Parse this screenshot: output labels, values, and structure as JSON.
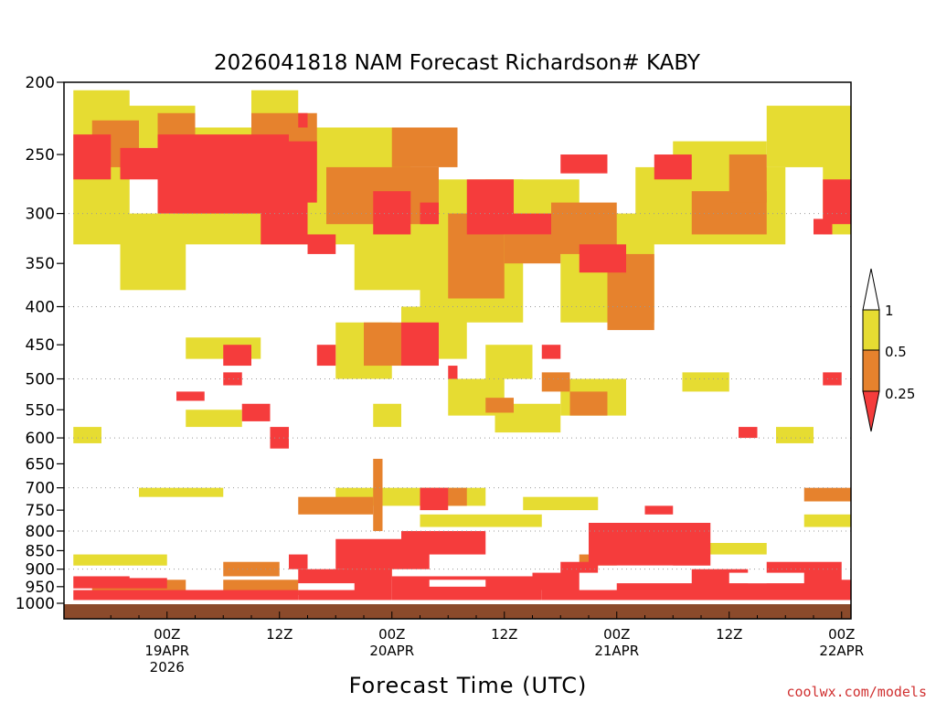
{
  "chart_data": {
    "type": "heatmap",
    "title": "2026041818 NAM Forecast Richardson# KABY",
    "xlabel": "Forecast Time (UTC)",
    "ylabel": "",
    "y_scale": "log-pressure",
    "ylim": [
      1000,
      200
    ],
    "y_ticks": [
      200,
      250,
      300,
      350,
      400,
      450,
      500,
      550,
      600,
      650,
      700,
      750,
      800,
      850,
      900,
      950,
      1000
    ],
    "y_tick_labels": [
      "200",
      "250",
      "300",
      "350",
      "400",
      "450",
      "500",
      "550",
      "600",
      "650",
      "700",
      "750",
      "800",
      "850",
      "900",
      "950",
      "1000"
    ],
    "gridlines_at": [
      300,
      400,
      500,
      600,
      700,
      800,
      900
    ],
    "xlim_hours": [
      -5,
      79
    ],
    "x_ticks": [
      {
        "hour": 6,
        "lines": [
          "00Z",
          "19APR",
          "2026"
        ]
      },
      {
        "hour": 18,
        "lines": [
          "12Z"
        ]
      },
      {
        "hour": 30,
        "lines": [
          "00Z",
          "20APR"
        ]
      },
      {
        "hour": 42,
        "lines": [
          "12Z"
        ]
      },
      {
        "hour": 54,
        "lines": [
          "00Z",
          "21APR"
        ]
      },
      {
        "hour": 66,
        "lines": [
          "12Z"
        ]
      },
      {
        "hour": 78,
        "lines": [
          "00Z",
          "22APR"
        ]
      }
    ],
    "colorbar": {
      "labels": [
        "1",
        "0.5",
        "0.25"
      ],
      "bins": [
        {
          "range": "> 1",
          "color": "#ffffff"
        },
        {
          "range": "0.5 - 1",
          "color": "#e6dc32"
        },
        {
          "range": "0.25 - 0.5",
          "color": "#e6822d"
        },
        {
          "range": "< 0.25",
          "color": "#f53c3c"
        }
      ]
    },
    "ground_color": "#8b4a2b",
    "regions": [
      {
        "bin": "0.5 - 1",
        "hours": [
          -4,
          2
        ],
        "p": [
          205,
          330
        ]
      },
      {
        "bin": "0.5 - 1",
        "hours": [
          1,
          9
        ],
        "p": [
          215,
          245
        ]
      },
      {
        "bin": "0.5 - 1",
        "hours": [
          7,
          30
        ],
        "p": [
          230,
          330
        ]
      },
      {
        "bin": "0.5 - 1",
        "hours": [
          15,
          20
        ],
        "p": [
          205,
          225
        ]
      },
      {
        "bin": "0.5 - 1",
        "hours": [
          24,
          32
        ],
        "p": [
          230,
          290
        ]
      },
      {
        "bin": "0.5 - 1",
        "hours": [
          26,
          40
        ],
        "p": [
          280,
          380
        ]
      },
      {
        "bin": "0.5 - 1",
        "hours": [
          33,
          44
        ],
        "p": [
          270,
          420
        ]
      },
      {
        "bin": "0.5 - 1",
        "hours": [
          40,
          50
        ],
        "p": [
          270,
          330
        ]
      },
      {
        "bin": "0.5 - 1",
        "hours": [
          48,
          58
        ],
        "p": [
          300,
          420
        ]
      },
      {
        "bin": "0.5 - 1",
        "hours": [
          56,
          72
        ],
        "p": [
          260,
          330
        ]
      },
      {
        "bin": "0.5 - 1",
        "hours": [
          60,
          70
        ],
        "p": [
          240,
          280
        ]
      },
      {
        "bin": "0.5 - 1",
        "hours": [
          70,
          80
        ],
        "p": [
          215,
          260
        ]
      },
      {
        "bin": "0.5 - 1",
        "hours": [
          76,
          82
        ],
        "p": [
          250,
          320
        ]
      },
      {
        "bin": "0.5 - 1",
        "hours": [
          1,
          8
        ],
        "p": [
          300,
          380
        ]
      },
      {
        "bin": "0.5 - 1",
        "hours": [
          24,
          30
        ],
        "p": [
          420,
          500
        ]
      },
      {
        "bin": "0.5 - 1",
        "hours": [
          31,
          38
        ],
        "p": [
          400,
          470
        ]
      },
      {
        "bin": "0.5 - 1",
        "hours": [
          40,
          45
        ],
        "p": [
          450,
          500
        ]
      },
      {
        "bin": "0.5 - 1",
        "hours": [
          8,
          16
        ],
        "p": [
          440,
          470
        ]
      },
      {
        "bin": "0.5 - 1",
        "hours": [
          36,
          42
        ],
        "p": [
          500,
          560
        ]
      },
      {
        "bin": "0.5 - 1",
        "hours": [
          41,
          48
        ],
        "p": [
          540,
          590
        ]
      },
      {
        "bin": "0.5 - 1",
        "hours": [
          48,
          55
        ],
        "p": [
          500,
          560
        ]
      },
      {
        "bin": "0.5 - 1",
        "hours": [
          8,
          14
        ],
        "p": [
          550,
          580
        ]
      },
      {
        "bin": "0.5 - 1",
        "hours": [
          28,
          31
        ],
        "p": [
          540,
          580
        ]
      },
      {
        "bin": "0.5 - 1",
        "hours": [
          -4,
          -1
        ],
        "p": [
          580,
          610
        ]
      },
      {
        "bin": "0.5 - 1",
        "hours": [
          71,
          75
        ],
        "p": [
          580,
          610
        ]
      },
      {
        "bin": "0.5 - 1",
        "hours": [
          61,
          66
        ],
        "p": [
          490,
          520
        ]
      },
      {
        "bin": "0.5 - 1",
        "hours": [
          3,
          12
        ],
        "p": [
          700,
          720
        ]
      },
      {
        "bin": "0.5 - 1",
        "hours": [
          24,
          40
        ],
        "p": [
          700,
          740
        ]
      },
      {
        "bin": "0.5 - 1",
        "hours": [
          33,
          46
        ],
        "p": [
          760,
          790
        ]
      },
      {
        "bin": "0.5 - 1",
        "hours": [
          44,
          52
        ],
        "p": [
          720,
          750
        ]
      },
      {
        "bin": "0.5 - 1",
        "hours": [
          74,
          80
        ],
        "p": [
          760,
          790
        ]
      },
      {
        "bin": "0.5 - 1",
        "hours": [
          60,
          70
        ],
        "p": [
          830,
          860
        ]
      },
      {
        "bin": "0.5 - 1",
        "hours": [
          -4,
          6
        ],
        "p": [
          860,
          890
        ]
      },
      {
        "bin": "0.5 - 1",
        "hours": [
          68,
          78
        ],
        "p": [
          950,
          985
        ]
      },
      {
        "bin": "0.5 - 1",
        "hours": [
          40,
          46
        ],
        "p": [
          930,
          960
        ]
      },
      {
        "bin": "0.25 - 0.5",
        "hours": [
          -2,
          3
        ],
        "p": [
          225,
          260
        ]
      },
      {
        "bin": "0.25 - 0.5",
        "hours": [
          5,
          9
        ],
        "p": [
          220,
          245
        ]
      },
      {
        "bin": "0.25 - 0.5",
        "hours": [
          15,
          22
        ],
        "p": [
          220,
          280
        ]
      },
      {
        "bin": "0.25 - 0.5",
        "hours": [
          23,
          35
        ],
        "p": [
          260,
          310
        ]
      },
      {
        "bin": "0.25 - 0.5",
        "hours": [
          30,
          37
        ],
        "p": [
          230,
          260
        ]
      },
      {
        "bin": "0.25 - 0.5",
        "hours": [
          36,
          42
        ],
        "p": [
          300,
          390
        ]
      },
      {
        "bin": "0.25 - 0.5",
        "hours": [
          42,
          48
        ],
        "p": [
          320,
          350
        ]
      },
      {
        "bin": "0.25 - 0.5",
        "hours": [
          47,
          54
        ],
        "p": [
          290,
          340
        ]
      },
      {
        "bin": "0.25 - 0.5",
        "hours": [
          53,
          58
        ],
        "p": [
          340,
          430
        ]
      },
      {
        "bin": "0.25 - 0.5",
        "hours": [
          62,
          70
        ],
        "p": [
          280,
          320
        ]
      },
      {
        "bin": "0.25 - 0.5",
        "hours": [
          66,
          70
        ],
        "p": [
          250,
          290
        ]
      },
      {
        "bin": "0.25 - 0.5",
        "hours": [
          27,
          31
        ],
        "p": [
          420,
          480
        ]
      },
      {
        "bin": "0.25 - 0.5",
        "hours": [
          46,
          49
        ],
        "p": [
          490,
          520
        ]
      },
      {
        "bin": "0.25 - 0.5",
        "hours": [
          49,
          53
        ],
        "p": [
          520,
          560
        ]
      },
      {
        "bin": "0.25 - 0.5",
        "hours": [
          40,
          43
        ],
        "p": [
          530,
          555
        ]
      },
      {
        "bin": "0.25 - 0.5",
        "hours": [
          28,
          29
        ],
        "p": [
          640,
          800
        ]
      },
      {
        "bin": "0.25 - 0.5",
        "hours": [
          20,
          28
        ],
        "p": [
          720,
          760
        ]
      },
      {
        "bin": "0.25 - 0.5",
        "hours": [
          33,
          38
        ],
        "p": [
          700,
          740
        ]
      },
      {
        "bin": "0.25 - 0.5",
        "hours": [
          25,
          30
        ],
        "p": [
          860,
          930
        ]
      },
      {
        "bin": "0.25 - 0.5",
        "hours": [
          50,
          54
        ],
        "p": [
          860,
          900
        ]
      },
      {
        "bin": "0.25 - 0.5",
        "hours": [
          -2,
          8
        ],
        "p": [
          930,
          965
        ]
      },
      {
        "bin": "0.25 - 0.5",
        "hours": [
          12,
          26
        ],
        "p": [
          930,
          975
        ]
      },
      {
        "bin": "0.25 - 0.5",
        "hours": [
          74,
          80
        ],
        "p": [
          700,
          730
        ]
      },
      {
        "bin": "0.25 - 0.5",
        "hours": [
          12,
          18
        ],
        "p": [
          880,
          920
        ]
      },
      {
        "bin": "< 0.25",
        "hours": [
          -4,
          0
        ],
        "p": [
          235,
          270
        ]
      },
      {
        "bin": "< 0.25",
        "hours": [
          1,
          5
        ],
        "p": [
          245,
          270
        ]
      },
      {
        "bin": "< 0.25",
        "hours": [
          5,
          19
        ],
        "p": [
          235,
          300
        ]
      },
      {
        "bin": "< 0.25",
        "hours": [
          19,
          22
        ],
        "p": [
          240,
          290
        ]
      },
      {
        "bin": "< 0.25",
        "hours": [
          16,
          21
        ],
        "p": [
          280,
          330
        ]
      },
      {
        "bin": "< 0.25",
        "hours": [
          21,
          24
        ],
        "p": [
          320,
          340
        ]
      },
      {
        "bin": "< 0.25",
        "hours": [
          28,
          32
        ],
        "p": [
          280,
          320
        ]
      },
      {
        "bin": "< 0.25",
        "hours": [
          33,
          35
        ],
        "p": [
          290,
          310
        ]
      },
      {
        "bin": "< 0.25",
        "hours": [
          38,
          43
        ],
        "p": [
          270,
          320
        ]
      },
      {
        "bin": "< 0.25",
        "hours": [
          43,
          47
        ],
        "p": [
          300,
          320
        ]
      },
      {
        "bin": "< 0.25",
        "hours": [
          48,
          53
        ],
        "p": [
          250,
          265
        ]
      },
      {
        "bin": "< 0.25",
        "hours": [
          50,
          55
        ],
        "p": [
          330,
          360
        ]
      },
      {
        "bin": "< 0.25",
        "hours": [
          58,
          62
        ],
        "p": [
          250,
          270
        ]
      },
      {
        "bin": "< 0.25",
        "hours": [
          76,
          80
        ],
        "p": [
          270,
          310
        ]
      },
      {
        "bin": "< 0.25",
        "hours": [
          75,
          77
        ],
        "p": [
          305,
          320
        ]
      },
      {
        "bin": "< 0.25",
        "hours": [
          20,
          21
        ],
        "p": [
          220,
          230
        ]
      },
      {
        "bin": "< 0.25",
        "hours": [
          31,
          35
        ],
        "p": [
          420,
          480
        ]
      },
      {
        "bin": "< 0.25",
        "hours": [
          12,
          15
        ],
        "p": [
          450,
          480
        ]
      },
      {
        "bin": "< 0.25",
        "hours": [
          12,
          14
        ],
        "p": [
          490,
          510
        ]
      },
      {
        "bin": "< 0.25",
        "hours": [
          7,
          10
        ],
        "p": [
          520,
          535
        ]
      },
      {
        "bin": "< 0.25",
        "hours": [
          14,
          17
        ],
        "p": [
          540,
          570
        ]
      },
      {
        "bin": "< 0.25",
        "hours": [
          17,
          19
        ],
        "p": [
          580,
          620
        ]
      },
      {
        "bin": "< 0.25",
        "hours": [
          22,
          24
        ],
        "p": [
          450,
          480
        ]
      },
      {
        "bin": "< 0.25",
        "hours": [
          33,
          36
        ],
        "p": [
          700,
          750
        ]
      },
      {
        "bin": "< 0.25",
        "hours": [
          57,
          60
        ],
        "p": [
          740,
          760
        ]
      },
      {
        "bin": "< 0.25",
        "hours": [
          51,
          64
        ],
        "p": [
          780,
          890
        ]
      },
      {
        "bin": "< 0.25",
        "hours": [
          48,
          52
        ],
        "p": [
          880,
          930
        ]
      },
      {
        "bin": "< 0.25",
        "hours": [
          45,
          51
        ],
        "p": [
          910,
          960
        ]
      },
      {
        "bin": "< 0.25",
        "hours": [
          24,
          34
        ],
        "p": [
          820,
          900
        ]
      },
      {
        "bin": "< 0.25",
        "hours": [
          31,
          40
        ],
        "p": [
          800,
          860
        ]
      },
      {
        "bin": "< 0.25",
        "hours": [
          20,
          30
        ],
        "p": [
          900,
          990
        ]
      },
      {
        "bin": "< 0.25",
        "hours": [
          30,
          46
        ],
        "p": [
          920,
          990
        ]
      },
      {
        "bin": "< 0.25",
        "hours": [
          -4,
          20
        ],
        "p": [
          960,
          990
        ]
      },
      {
        "bin": "< 0.25",
        "hours": [
          46,
          75
        ],
        "p": [
          940,
          990
        ]
      },
      {
        "bin": "< 0.25",
        "hours": [
          70,
          78
        ],
        "p": [
          880,
          950
        ]
      },
      {
        "bin": "< 0.25",
        "hours": [
          62,
          68
        ],
        "p": [
          900,
          950
        ]
      },
      {
        "bin": "< 0.25",
        "hours": [
          75,
          79
        ],
        "p": [
          930,
          990
        ]
      },
      {
        "bin": "< 0.25",
        "hours": [
          -4,
          6
        ],
        "p": [
          920,
          955
        ]
      },
      {
        "bin": "< 0.25",
        "hours": [
          19,
          21
        ],
        "p": [
          860,
          900
        ]
      },
      {
        "bin": "< 0.25",
        "hours": [
          76,
          78
        ],
        "p": [
          490,
          510
        ]
      },
      {
        "bin": "< 0.25",
        "hours": [
          67,
          69
        ],
        "p": [
          580,
          600
        ]
      },
      {
        "bin": "< 0.25",
        "hours": [
          46,
          48
        ],
        "p": [
          450,
          470
        ]
      },
      {
        "bin": "< 0.25",
        "hours": [
          36,
          37
        ],
        "p": [
          480,
          500
        ]
      }
    ],
    "gaps": [
      {
        "hours": [
          50,
          54
        ],
        "p": [
          910,
          960
        ]
      },
      {
        "hours": [
          52,
          60
        ],
        "p": [
          890,
          930
        ]
      },
      {
        "hours": [
          20,
          26
        ],
        "p": [
          940,
          960
        ]
      },
      {
        "hours": [
          34,
          40
        ],
        "p": [
          930,
          950
        ]
      },
      {
        "hours": [
          2,
          8
        ],
        "p": [
          900,
          925
        ]
      },
      {
        "hours": [
          66,
          74
        ],
        "p": [
          910,
          940
        ]
      }
    ]
  },
  "credit": "coolwx.com/models"
}
